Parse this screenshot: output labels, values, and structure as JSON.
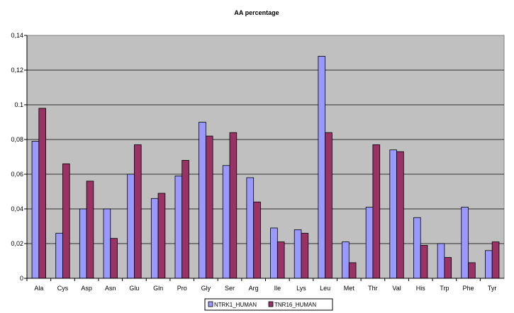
{
  "chart_data": {
    "type": "bar",
    "title": "AA percentage",
    "xlabel": "",
    "ylabel": "",
    "ylim": [
      0,
      0.14
    ],
    "yticks": [
      "0",
      "0,02",
      "0,04",
      "0,06",
      "0,08",
      "0.1",
      "0,12",
      "0,14"
    ],
    "yticks_values": [
      0,
      0.02,
      0.04,
      0.06,
      0.08,
      0.1,
      0.12,
      0.14
    ],
    "grid": true,
    "legend_position": "bottom",
    "plot_background": "#c0c0c0",
    "categories": [
      "Ala",
      "Cys",
      "Asp",
      "Asn",
      "Glu",
      "Gln",
      "Pro",
      "Gly",
      "Ser",
      "Arg",
      "Ile",
      "Lys",
      "Leu",
      "Met",
      "Thr",
      "Val",
      "His",
      "Trp",
      "Phe",
      "Tyr"
    ],
    "series": [
      {
        "name": "NTRK1_HUMAN",
        "color": "#9999ff",
        "values": [
          0.079,
          0.026,
          0.04,
          0.04,
          0.06,
          0.046,
          0.059,
          0.09,
          0.065,
          0.058,
          0.029,
          0.028,
          0.128,
          0.021,
          0.041,
          0.074,
          0.035,
          0.02,
          0.041,
          0.016
        ]
      },
      {
        "name": "TNR16_HUMAN",
        "color": "#993366",
        "values": [
          0.098,
          0.066,
          0.056,
          0.023,
          0.077,
          0.049,
          0.068,
          0.082,
          0.084,
          0.044,
          0.021,
          0.026,
          0.084,
          0.009,
          0.077,
          0.073,
          0.019,
          0.012,
          0.009,
          0.021
        ]
      }
    ]
  }
}
